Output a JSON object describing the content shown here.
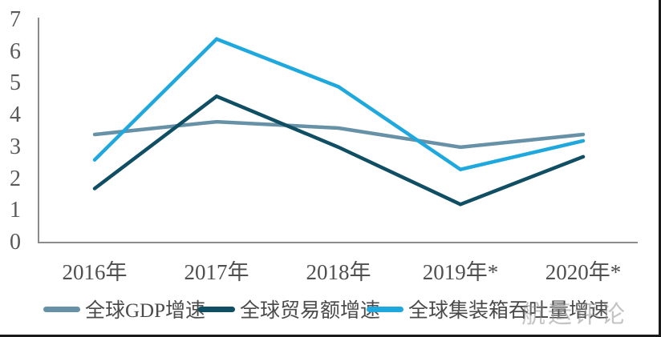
{
  "chart_data": {
    "type": "line",
    "categories": [
      "2016年",
      "2017年",
      "2018年",
      "2019年*",
      "2020年*"
    ],
    "series": [
      {
        "name": "全球GDP增速",
        "color": "#6691a7",
        "values": [
          3.4,
          3.8,
          3.6,
          3.0,
          3.4
        ]
      },
      {
        "name": "全球贸易额增速",
        "color": "#0f4e63",
        "values": [
          1.7,
          4.6,
          3.0,
          1.2,
          2.7
        ]
      },
      {
        "name": "全球集装箱吞吐量增速",
        "color": "#1fa8dd",
        "values": [
          2.6,
          6.4,
          4.9,
          2.3,
          3.2
        ]
      }
    ],
    "title": "",
    "xlabel": "",
    "ylabel": "",
    "ylim": [
      0,
      7
    ],
    "yticks": [
      0,
      1,
      2,
      3,
      4,
      5,
      6,
      7
    ],
    "grid": false,
    "legend_position": "bottom",
    "axis_color": "#8c8c8c"
  },
  "watermark": {
    "text": "航运评论"
  }
}
